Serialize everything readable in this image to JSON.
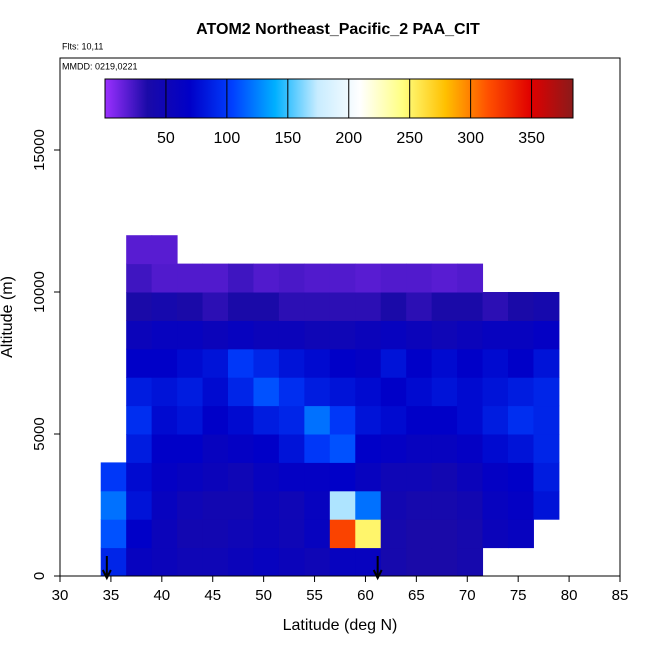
{
  "chart_data": {
    "type": "heatmap",
    "title": "ATOM2 Northeast_Pacific_2 PAA_CIT",
    "subtitle_lines": [
      "Flts: 10,11",
      "MMDD: 0219,0221"
    ],
    "x_label": "Latitude (deg N)",
    "y_label": "Altitude (m)",
    "xlim": [
      30,
      85
    ],
    "xticks": [
      30,
      35,
      40,
      45,
      50,
      55,
      60,
      65,
      70,
      75,
      80,
      85
    ],
    "ylim": [
      0,
      18240
    ],
    "yticks": [
      0,
      5000,
      10000,
      15000
    ],
    "x_edges": [
      34,
      36.5,
      39,
      41.5,
      44,
      46.5,
      49,
      51.5,
      54,
      56.5,
      59,
      61.5,
      64,
      66.5,
      69,
      71.5,
      74,
      76.5,
      79
    ],
    "y_edges": [
      0,
      1000,
      2000,
      3000,
      4000,
      5000,
      6000,
      7000,
      8000,
      9000,
      10000,
      11000,
      12000
    ],
    "values": [
      [
        90,
        60,
        55,
        50,
        50,
        55,
        60,
        55,
        50,
        60,
        60,
        40,
        35,
        35,
        40,
        null,
        null,
        null
      ],
      [
        110,
        70,
        55,
        45,
        45,
        50,
        55,
        50,
        60,
        320,
        250,
        40,
        35,
        35,
        40,
        55,
        60,
        null
      ],
      [
        120,
        80,
        60,
        50,
        45,
        45,
        55,
        50,
        60,
        170,
        120,
        45,
        40,
        40,
        45,
        60,
        65,
        80
      ],
      [
        100,
        75,
        65,
        60,
        55,
        50,
        60,
        65,
        65,
        70,
        60,
        50,
        50,
        45,
        55,
        65,
        70,
        85
      ],
      [
        null,
        85,
        70,
        70,
        60,
        65,
        70,
        80,
        100,
        110,
        70,
        65,
        60,
        60,
        65,
        75,
        80,
        90
      ],
      [
        null,
        95,
        75,
        80,
        70,
        75,
        85,
        90,
        120,
        100,
        80,
        75,
        70,
        70,
        75,
        85,
        95,
        90
      ],
      [
        null,
        85,
        80,
        85,
        75,
        90,
        110,
        95,
        85,
        80,
        75,
        70,
        75,
        80,
        75,
        80,
        85,
        90
      ],
      [
        null,
        70,
        70,
        75,
        80,
        100,
        90,
        80,
        75,
        70,
        65,
        80,
        70,
        75,
        70,
        75,
        70,
        80
      ],
      [
        null,
        55,
        60,
        60,
        55,
        60,
        55,
        55,
        50,
        50,
        55,
        60,
        55,
        50,
        55,
        60,
        60,
        65
      ],
      [
        null,
        35,
        40,
        35,
        30,
        35,
        35,
        30,
        30,
        30,
        30,
        35,
        30,
        35,
        35,
        30,
        35,
        40
      ],
      [
        null,
        25,
        20,
        20,
        20,
        25,
        20,
        22,
        20,
        20,
        18,
        20,
        20,
        18,
        20,
        null,
        null,
        null
      ],
      [
        null,
        18,
        18,
        null,
        null,
        null,
        null,
        null,
        null,
        null,
        null,
        null,
        null,
        null,
        null,
        null,
        null,
        null
      ]
    ],
    "clim": [
      0,
      384
    ],
    "cticks": [
      50,
      100,
      150,
      200,
      250,
      300,
      350
    ],
    "colorscale": [
      "#9b30ff",
      "#1a0aa8",
      "#0000c8",
      "#0040ff",
      "#00b0ff",
      "#c8ecff",
      "#ffffff",
      "#ffff80",
      "#ffc000",
      "#ff5000",
      "#e00000",
      "#8b1a1a"
    ],
    "arrows": [
      34.6,
      61.2
    ]
  }
}
